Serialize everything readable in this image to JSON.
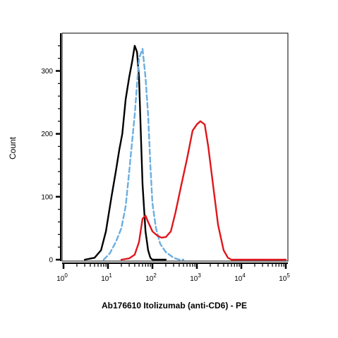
{
  "chart_data": {
    "type": "line",
    "xlabel": "Ab176610 Itolizumab (anti-CD6) - PE",
    "ylabel": "Count",
    "x_scale": "log",
    "xlim": [
      1,
      100000
    ],
    "ylim": [
      0,
      360
    ],
    "grid": false,
    "x_ticks": [
      {
        "value": 1,
        "base": "10",
        "exp": "0"
      },
      {
        "value": 10,
        "base": "10",
        "exp": "1"
      },
      {
        "value": 100,
        "base": "10",
        "exp": "2"
      },
      {
        "value": 1000,
        "base": "10",
        "exp": "3"
      },
      {
        "value": 10000,
        "base": "10",
        "exp": "4"
      },
      {
        "value": 100000,
        "base": "10",
        "exp": "5"
      }
    ],
    "y_ticks": [
      {
        "value": 0,
        "label": "0"
      },
      {
        "value": 100,
        "label": "100"
      },
      {
        "value": 200,
        "label": "200"
      },
      {
        "value": 300,
        "label": "300"
      }
    ],
    "series": [
      {
        "color": "#000000",
        "style": "solid",
        "x": [
          3,
          5,
          7,
          9,
          12,
          15,
          18,
          21,
          25,
          30,
          35,
          40,
          45,
          50,
          55,
          60,
          70,
          80,
          90,
          100,
          120,
          200
        ],
        "y": [
          0,
          3,
          15,
          45,
          100,
          140,
          175,
          200,
          255,
          290,
          315,
          340,
          330,
          290,
          200,
          120,
          45,
          15,
          3,
          0,
          0,
          0
        ]
      },
      {
        "color": "#6aaee0",
        "style": "dashed",
        "x": [
          8,
          11,
          15,
          20,
          25,
          30,
          40,
          50,
          60,
          70,
          80,
          90,
          100,
          120,
          150,
          200,
          300,
          400,
          500
        ],
        "y": [
          0,
          10,
          28,
          50,
          85,
          140,
          230,
          320,
          335,
          290,
          230,
          150,
          90,
          50,
          25,
          12,
          3,
          0,
          0
        ]
      },
      {
        "color": "#e0161b",
        "style": "solid",
        "x": [
          20,
          30,
          40,
          50,
          60,
          70,
          80,
          100,
          130,
          160,
          200,
          260,
          330,
          450,
          600,
          800,
          1000,
          1200,
          1500,
          1800,
          2300,
          3000,
          4000,
          5000,
          6000,
          8000,
          20000,
          100000
        ],
        "y": [
          0,
          2,
          8,
          28,
          65,
          70,
          60,
          45,
          38,
          35,
          36,
          45,
          75,
          120,
          160,
          205,
          215,
          220,
          215,
          180,
          120,
          55,
          15,
          3,
          0,
          0,
          0,
          0
        ]
      }
    ]
  }
}
